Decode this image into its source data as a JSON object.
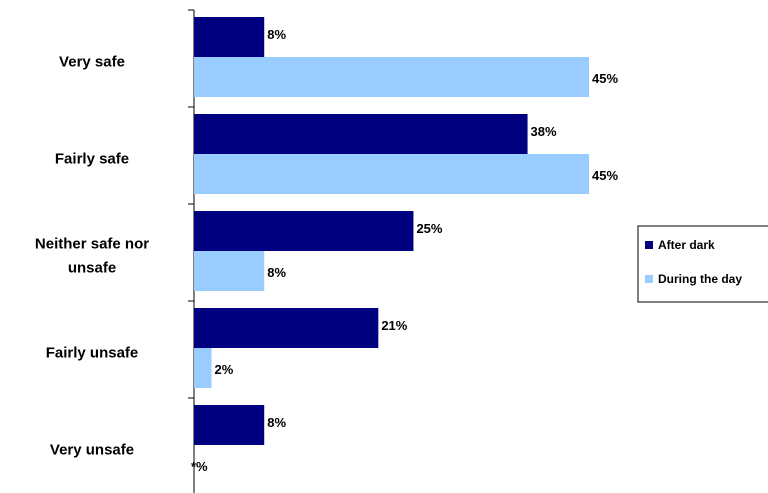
{
  "chart_data": {
    "type": "bar",
    "orientation": "horizontal",
    "categories": [
      [
        "Very safe"
      ],
      [
        "Fairly safe"
      ],
      [
        "Neither safe nor",
        "unsafe"
      ],
      [
        "Fairly unsafe"
      ],
      [
        "Very unsafe"
      ]
    ],
    "series": [
      {
        "name": "After dark",
        "color": "#000080",
        "values": [
          8,
          38,
          25,
          21,
          8
        ],
        "labels": [
          "8%",
          "38%",
          "25%",
          "21%",
          "8%"
        ]
      },
      {
        "name": "During the day",
        "color": "#99ccff",
        "values": [
          45,
          45,
          8,
          2,
          0
        ],
        "labels": [
          "45%",
          "45%",
          "8%",
          "2%",
          "*%"
        ]
      }
    ],
    "xlim": [
      0,
      50
    ],
    "grid": false,
    "legend_position": "right"
  }
}
